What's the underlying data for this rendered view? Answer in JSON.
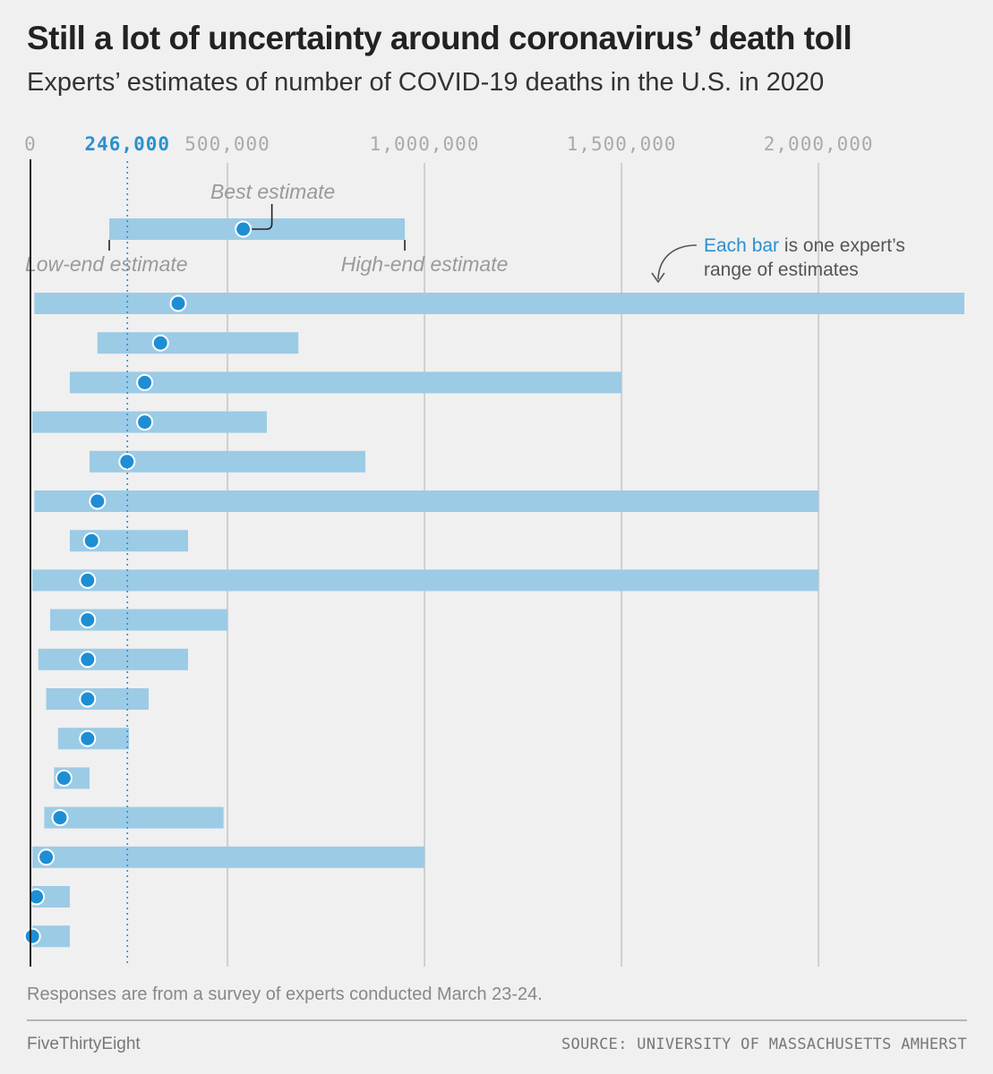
{
  "chart_data": {
    "type": "range",
    "title": "Still a lot of uncertainty around coronavirus’ death toll",
    "subtitle": "Experts’ estimates of number of COVID-19 deaths in the U.S. in 2020",
    "x_range": [
      0,
      2370000
    ],
    "x_ticks": [
      {
        "value": 0,
        "label": "0"
      },
      {
        "value": 500000,
        "label": "500,000"
      },
      {
        "value": 1000000,
        "label": "1,000,000"
      },
      {
        "value": 1500000,
        "label": "1,500,000"
      },
      {
        "value": 2000000,
        "label": "2,000,000"
      }
    ],
    "reference": {
      "value": 246000,
      "label": "246,000"
    },
    "legend": {
      "low": 200000,
      "best": 540000,
      "high": 950000,
      "best_label": "Best estimate",
      "low_label": "Low-end estimate",
      "high_label": "High-end estimate"
    },
    "annotation": {
      "accent": "Each bar",
      "rest_line1": " is one expert’s",
      "line2": "range of estimates"
    },
    "experts": [
      {
        "low": 10000,
        "best": 375000,
        "high": 2370000
      },
      {
        "low": 170000,
        "best": 330000,
        "high": 680000
      },
      {
        "low": 100000,
        "best": 290000,
        "high": 1500000
      },
      {
        "low": 5000,
        "best": 290000,
        "high": 600000
      },
      {
        "low": 150000,
        "best": 245000,
        "high": 850000
      },
      {
        "low": 10000,
        "best": 170000,
        "high": 2000000
      },
      {
        "low": 100000,
        "best": 155000,
        "high": 400000
      },
      {
        "low": 5000,
        "best": 145000,
        "high": 2000000
      },
      {
        "low": 50000,
        "best": 145000,
        "high": 500000
      },
      {
        "low": 20000,
        "best": 145000,
        "high": 400000
      },
      {
        "low": 40000,
        "best": 145000,
        "high": 300000
      },
      {
        "low": 70000,
        "best": 145000,
        "high": 250000
      },
      {
        "low": 60000,
        "best": 85000,
        "high": 150000
      },
      {
        "low": 35000,
        "best": 75000,
        "high": 490000
      },
      {
        "low": 5000,
        "best": 40000,
        "high": 1000000
      },
      {
        "low": 5000,
        "best": 15000,
        "high": 100000
      },
      {
        "low": 5000,
        "best": 5000,
        "high": 100000
      }
    ],
    "colors": {
      "bar": "#9ccbe6",
      "dot": "#1e8ed4",
      "ref": "#2a90cf",
      "grid": "#cfcfcf",
      "axis": "#222222"
    }
  },
  "footnote": "Responses are from a survey of experts conducted March 23-24.",
  "brand": "FiveThirtyEight",
  "source": "SOURCE: UNIVERSITY OF MASSACHUSETTS AMHERST"
}
